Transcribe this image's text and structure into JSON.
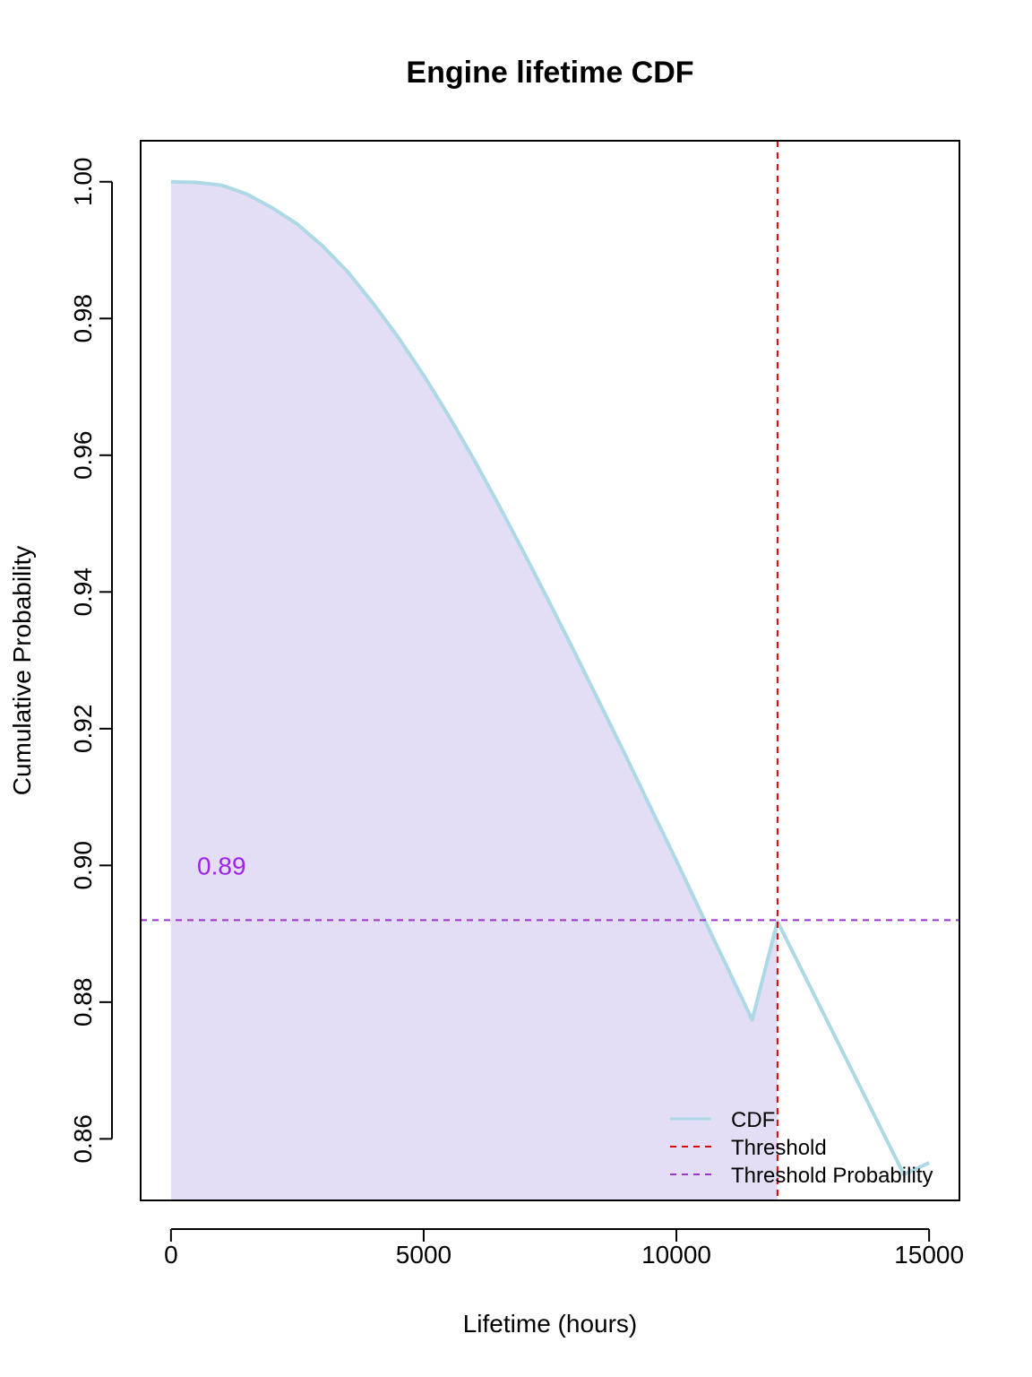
{
  "chart_data": {
    "type": "area",
    "title": "Engine lifetime CDF",
    "xlabel": "Lifetime (hours)",
    "ylabel": "Cumulative Probability",
    "xlim": [
      -600,
      15600
    ],
    "ylim": [
      0.851,
      1.006
    ],
    "x_ticks": [
      0,
      5000,
      10000,
      15000
    ],
    "x_tick_labels": [
      "0",
      "5000",
      "10000",
      "15000"
    ],
    "y_ticks": [
      0.86,
      0.88,
      0.9,
      0.92,
      0.94,
      0.96,
      0.98,
      1.0
    ],
    "y_tick_labels": [
      "0.86",
      "0.88",
      "0.90",
      "0.92",
      "0.94",
      "0.96",
      "0.98",
      "1.00"
    ],
    "grid": false,
    "legend_position": "bottom-right",
    "series": [
      {
        "name": "CDF",
        "color": "#add8e6",
        "x": [
          0,
          500,
          1000,
          1500,
          2000,
          2500,
          3000,
          3500,
          4000,
          4500,
          5000,
          5500,
          6000,
          6500,
          7000,
          7500,
          8000,
          8500,
          9000,
          9500,
          10000,
          10500,
          11000,
          11500,
          12000,
          12500,
          13000,
          13500,
          14000,
          14500,
          15000
        ],
        "y": [
          1.0,
          0.9999,
          0.9995,
          0.9982,
          0.9962,
          0.9938,
          0.9906,
          0.9868,
          0.9822,
          0.9772,
          0.9717,
          0.9657,
          0.9593,
          0.9525,
          0.9455,
          0.9383,
          0.931,
          0.9235,
          0.916,
          0.9083,
          0.9007,
          0.8929,
          0.8852,
          0.8774,
          0.8918,
          0.8844,
          0.877,
          0.8696,
          0.8622,
          0.8548,
          0.8565
        ]
      }
    ],
    "threshold": {
      "name": "Threshold",
      "x": 12000,
      "color": "#dd0000"
    },
    "threshold_probability": {
      "name": "Threshold Probability",
      "y": 0.892,
      "color": "#9a32cd"
    },
    "shaded_region": {
      "x_from": 0,
      "x_to": 12000,
      "color": "#e3def5"
    },
    "annotation": {
      "text": "0.89",
      "x": 1000,
      "y": 0.9,
      "color": "#a020f0"
    }
  }
}
